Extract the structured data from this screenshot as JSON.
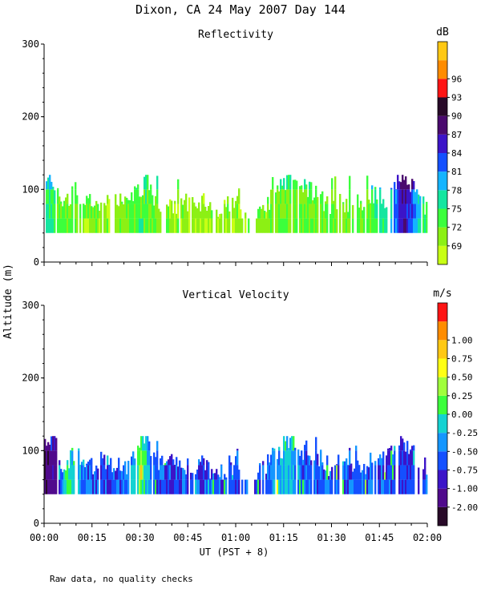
{
  "title": "Dixon, CA 24 May 2007  Day 144",
  "footnote": "Raw data, no quality checks",
  "shared_ylabel": "Altitude (m)",
  "xlabel": "UT  (PST + 8)",
  "colors": {
    "reflectivity_scale": [
      "#c8ff14",
      "#8cf014",
      "#3cff3c",
      "#14e6a0",
      "#14b4ff",
      "#1450ff",
      "#3c14c8",
      "#4a0a6e",
      "#280a28",
      "#ff1414",
      "#ff8c00",
      "#ffc814"
    ],
    "velocity_scale": [
      "#280a28",
      "#500a8c",
      "#3c14c8",
      "#1450ff",
      "#1496ff",
      "#14d2d2",
      "#3cff3c",
      "#a0ff3c",
      "#ffff14",
      "#ffc814",
      "#ff8c00",
      "#ff1414"
    ]
  },
  "chart_data": [
    {
      "type": "heatmap",
      "title": "Reflectivity",
      "colorbar_unit": "dB",
      "colorbar_ticks": [
        "69",
        "72",
        "75",
        "78",
        "81",
        "84",
        "87",
        "90",
        "93",
        "96"
      ],
      "colorbar_range": [
        67.5,
        97.5
      ],
      "ylim": [
        0,
        300
      ],
      "y_ticks": [
        "0",
        "100",
        "200",
        "300"
      ],
      "xlim_minutes": [
        0,
        120
      ],
      "x_ticks": [
        "00:00",
        "00:15",
        "00:30",
        "00:45",
        "01:00",
        "01:15",
        "01:30",
        "01:45",
        "02:00"
      ],
      "grid": false,
      "echo_base_m": 40,
      "echo_top_m": [
        [
          0,
          120
        ],
        [
          4,
          100
        ],
        [
          6,
          80
        ],
        [
          10,
          100
        ],
        [
          14,
          80
        ],
        [
          18,
          80
        ],
        [
          20,
          80
        ],
        [
          22,
          80
        ],
        [
          26,
          80
        ],
        [
          30,
          100
        ],
        [
          32,
          120
        ],
        [
          34,
          80
        ],
        [
          38,
          80
        ],
        [
          42,
          80
        ],
        [
          46,
          80
        ],
        [
          50,
          80
        ],
        [
          54,
          60
        ],
        [
          58,
          80
        ],
        [
          60,
          80
        ],
        [
          62,
          60
        ],
        [
          66,
          60
        ],
        [
          68,
          80
        ],
        [
          70,
          80
        ],
        [
          72,
          100
        ],
        [
          74,
          100
        ],
        [
          76,
          120
        ],
        [
          80,
          100
        ],
        [
          84,
          100
        ],
        [
          88,
          80
        ],
        [
          92,
          80
        ],
        [
          96,
          80
        ],
        [
          100,
          80
        ],
        [
          104,
          100
        ],
        [
          106,
          80
        ],
        [
          108,
          100
        ],
        [
          110,
          100
        ],
        [
          112,
          120
        ],
        [
          114,
          100
        ],
        [
          116,
          100
        ],
        [
          118,
          80
        ]
      ],
      "typical_dB": [
        [
          0,
          76
        ],
        [
          4,
          73
        ],
        [
          10,
          72
        ],
        [
          20,
          71
        ],
        [
          30,
          74
        ],
        [
          34,
          73
        ],
        [
          40,
          71
        ],
        [
          50,
          71
        ],
        [
          60,
          71
        ],
        [
          70,
          72
        ],
        [
          80,
          73
        ],
        [
          90,
          72
        ],
        [
          100,
          72
        ],
        [
          106,
          76
        ],
        [
          110,
          80
        ],
        [
          112,
          86
        ],
        [
          114,
          83
        ],
        [
          118,
          76
        ],
        [
          120,
          74
        ]
      ]
    },
    {
      "type": "heatmap",
      "title": "Vertical Velocity",
      "colorbar_unit": "m/s",
      "colorbar_ticks": [
        "-2.00",
        "-1.00",
        "-0.75",
        "-0.50",
        "-0.25",
        "0.00",
        "0.25",
        "0.50",
        "0.75",
        "1.00"
      ],
      "ylim": [
        0,
        300
      ],
      "y_ticks": [
        "0",
        "100",
        "200",
        "300"
      ],
      "xlim_minutes": [
        0,
        120
      ],
      "x_ticks": [
        "00:00",
        "00:15",
        "00:30",
        "00:45",
        "01:00",
        "01:15",
        "01:30",
        "01:45",
        "02:00"
      ],
      "grid": false,
      "echo_base_m": 40,
      "echo_top_m": [
        [
          0,
          120
        ],
        [
          4,
          100
        ],
        [
          6,
          80
        ],
        [
          10,
          100
        ],
        [
          14,
          80
        ],
        [
          18,
          80
        ],
        [
          20,
          80
        ],
        [
          22,
          80
        ],
        [
          26,
          80
        ],
        [
          30,
          100
        ],
        [
          32,
          120
        ],
        [
          34,
          80
        ],
        [
          38,
          80
        ],
        [
          42,
          80
        ],
        [
          46,
          80
        ],
        [
          50,
          80
        ],
        [
          54,
          60
        ],
        [
          58,
          80
        ],
        [
          60,
          80
        ],
        [
          62,
          60
        ],
        [
          66,
          60
        ],
        [
          68,
          80
        ],
        [
          70,
          80
        ],
        [
          72,
          100
        ],
        [
          74,
          100
        ],
        [
          76,
          120
        ],
        [
          80,
          100
        ],
        [
          84,
          100
        ],
        [
          88,
          80
        ],
        [
          92,
          80
        ],
        [
          96,
          80
        ],
        [
          100,
          80
        ],
        [
          104,
          100
        ],
        [
          106,
          80
        ],
        [
          108,
          100
        ],
        [
          110,
          100
        ],
        [
          112,
          120
        ],
        [
          114,
          100
        ],
        [
          116,
          100
        ],
        [
          118,
          80
        ]
      ],
      "typical_ms": [
        [
          0,
          -2.0
        ],
        [
          4,
          -1.5
        ],
        [
          6,
          0.0
        ],
        [
          10,
          -0.2
        ],
        [
          14,
          -0.6
        ],
        [
          20,
          -0.7
        ],
        [
          26,
          -0.6
        ],
        [
          30,
          0.2
        ],
        [
          34,
          -0.6
        ],
        [
          40,
          -0.7
        ],
        [
          50,
          -0.65
        ],
        [
          60,
          -0.6
        ],
        [
          70,
          -0.55
        ],
        [
          76,
          -0.2
        ],
        [
          80,
          -0.55
        ],
        [
          90,
          -0.6
        ],
        [
          100,
          -0.6
        ],
        [
          106,
          -0.6
        ],
        [
          110,
          -0.7
        ],
        [
          114,
          -0.72
        ],
        [
          118,
          -0.65
        ],
        [
          120,
          -0.6
        ]
      ]
    }
  ]
}
